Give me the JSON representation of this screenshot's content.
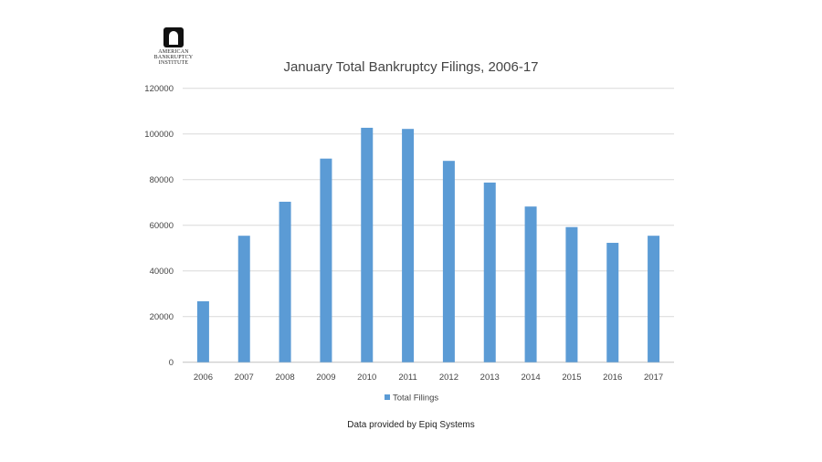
{
  "logo": {
    "line1": "AMERICAN",
    "line2": "BANKRUPTCY",
    "line3": "INSTITUTE"
  },
  "footer": "Data provided by Epiq Systems",
  "chart_data": {
    "type": "bar",
    "title": "January Total Bankruptcy Filings, 2006-17",
    "xlabel": "",
    "ylabel": "",
    "categories": [
      "2006",
      "2007",
      "2008",
      "2009",
      "2010",
      "2011",
      "2012",
      "2013",
      "2014",
      "2015",
      "2016",
      "2017"
    ],
    "series": [
      {
        "name": "Total Filings",
        "values": [
          26700,
          55400,
          70300,
          89200,
          102700,
          102200,
          88200,
          78700,
          68200,
          59200,
          52300,
          55400
        ],
        "color": "#5b9bd5"
      }
    ],
    "ylim": [
      0,
      120000
    ],
    "yticks": [
      0,
      20000,
      40000,
      60000,
      80000,
      100000,
      120000
    ],
    "grid": true,
    "legend": "bottom"
  }
}
